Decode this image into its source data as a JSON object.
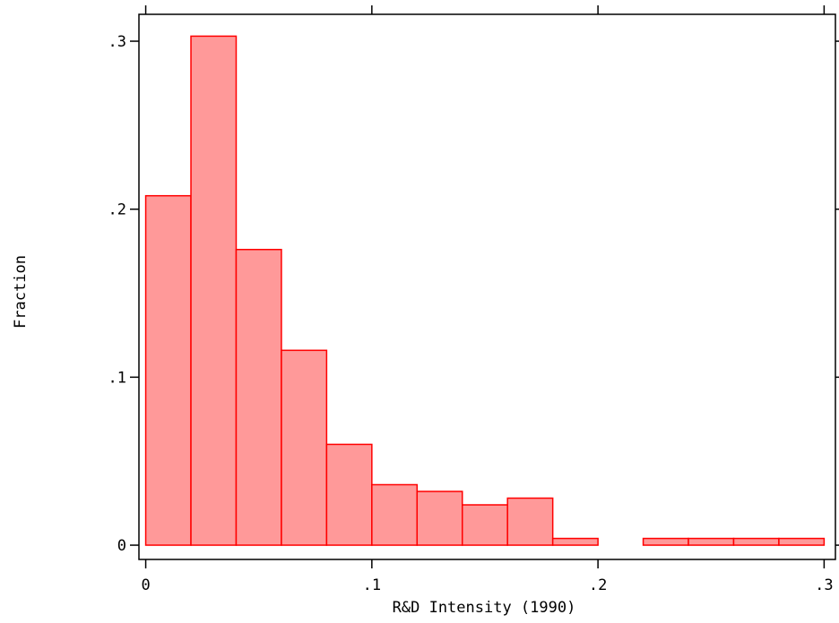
{
  "chart_data": {
    "type": "bar",
    "histogram": true,
    "xlabel": "R&D Intensity (1990)",
    "ylabel": "Fraction",
    "xlim": [
      -0.003,
      0.305
    ],
    "ylim": [
      -0.0085,
      0.316
    ],
    "xticks": [
      0,
      0.1,
      0.2,
      0.3
    ],
    "xtick_labels": [
      "0",
      ".1",
      ".2",
      ".3"
    ],
    "yticks": [
      0,
      0.1,
      0.2,
      0.3
    ],
    "ytick_labels": [
      "0",
      ".1",
      ".2",
      ".3"
    ],
    "bin_edges": [
      0,
      0.02,
      0.04,
      0.06,
      0.08,
      0.1,
      0.12,
      0.14,
      0.16,
      0.18,
      0.2,
      0.22,
      0.24,
      0.26,
      0.28,
      0.3
    ],
    "values": [
      0.208,
      0.303,
      0.176,
      0.116,
      0.06,
      0.036,
      0.032,
      0.024,
      0.028,
      0.004,
      0,
      0.004,
      0.004,
      0.004,
      0.004
    ],
    "fill_color": "#ff9999",
    "edge_color": "#ff0000",
    "grid": false,
    "legend": "none"
  }
}
